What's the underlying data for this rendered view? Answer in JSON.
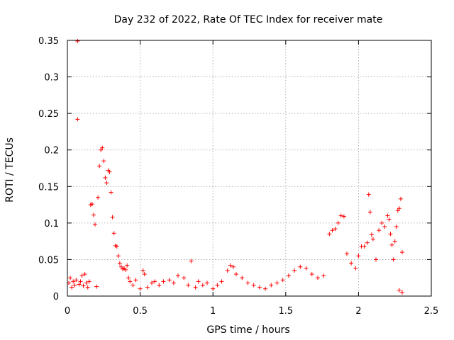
{
  "chart_data": {
    "type": "scatter",
    "title": "Day 232 of 2022, Rate Of TEC Index for receiver mate",
    "xlabel": "GPS time / hours",
    "ylabel": "ROTI / TECUs",
    "xlim": [
      0,
      2.5
    ],
    "ylim": [
      0,
      0.35
    ],
    "xticks": [
      0,
      0.5,
      1,
      1.5,
      2,
      2.5
    ],
    "xtick_labels": [
      "0",
      "0.5",
      "1",
      "1.5",
      "2",
      "2.5"
    ],
    "yticks": [
      0,
      0.05,
      0.1,
      0.15,
      0.2,
      0.25,
      0.3,
      0.35
    ],
    "ytick_labels": [
      "0",
      "0.05",
      "0.1",
      "0.15",
      "0.2",
      "0.25",
      "0.3",
      "0.35"
    ],
    "grid": true,
    "marker": "+",
    "color": "#ff0000",
    "series": [
      {
        "name": "ROTI",
        "points": [
          [
            0.01,
            0.018
          ],
          [
            0.02,
            0.025
          ],
          [
            0.03,
            0.012
          ],
          [
            0.04,
            0.02
          ],
          [
            0.05,
            0.015
          ],
          [
            0.06,
            0.022
          ],
          [
            0.07,
            0.349
          ],
          [
            0.07,
            0.242
          ],
          [
            0.08,
            0.016
          ],
          [
            0.09,
            0.02
          ],
          [
            0.1,
            0.028
          ],
          [
            0.11,
            0.014
          ],
          [
            0.12,
            0.03
          ],
          [
            0.13,
            0.018
          ],
          [
            0.14,
            0.012
          ],
          [
            0.15,
            0.02
          ],
          [
            0.16,
            0.125
          ],
          [
            0.17,
            0.126
          ],
          [
            0.18,
            0.111
          ],
          [
            0.19,
            0.098
          ],
          [
            0.2,
            0.013
          ],
          [
            0.21,
            0.135
          ],
          [
            0.22,
            0.178
          ],
          [
            0.23,
            0.2
          ],
          [
            0.24,
            0.203
          ],
          [
            0.25,
            0.185
          ],
          [
            0.26,
            0.162
          ],
          [
            0.27,
            0.155
          ],
          [
            0.28,
            0.172
          ],
          [
            0.29,
            0.17
          ],
          [
            0.3,
            0.142
          ],
          [
            0.31,
            0.108
          ],
          [
            0.32,
            0.086
          ],
          [
            0.33,
            0.069
          ],
          [
            0.34,
            0.068
          ],
          [
            0.35,
            0.055
          ],
          [
            0.36,
            0.045
          ],
          [
            0.37,
            0.04
          ],
          [
            0.38,
            0.037
          ],
          [
            0.39,
            0.038
          ],
          [
            0.4,
            0.036
          ],
          [
            0.41,
            0.042
          ],
          [
            0.42,
            0.025
          ],
          [
            0.43,
            0.02
          ],
          [
            0.45,
            0.015
          ],
          [
            0.47,
            0.022
          ],
          [
            0.5,
            0.01
          ],
          [
            0.52,
            0.035
          ],
          [
            0.53,
            0.03
          ],
          [
            0.55,
            0.012
          ],
          [
            0.58,
            0.018
          ],
          [
            0.6,
            0.02
          ],
          [
            0.63,
            0.015
          ],
          [
            0.66,
            0.02
          ],
          [
            0.7,
            0.022
          ],
          [
            0.73,
            0.018
          ],
          [
            0.76,
            0.028
          ],
          [
            0.8,
            0.025
          ],
          [
            0.83,
            0.015
          ],
          [
            0.85,
            0.048
          ],
          [
            0.88,
            0.012
          ],
          [
            0.9,
            0.02
          ],
          [
            0.93,
            0.015
          ],
          [
            0.96,
            0.018
          ],
          [
            1.0,
            0.01
          ],
          [
            1.03,
            0.015
          ],
          [
            1.06,
            0.02
          ],
          [
            1.1,
            0.035
          ],
          [
            1.12,
            0.042
          ],
          [
            1.14,
            0.04
          ],
          [
            1.16,
            0.03
          ],
          [
            1.2,
            0.025
          ],
          [
            1.24,
            0.018
          ],
          [
            1.28,
            0.015
          ],
          [
            1.32,
            0.012
          ],
          [
            1.36,
            0.01
          ],
          [
            1.4,
            0.015
          ],
          [
            1.44,
            0.018
          ],
          [
            1.48,
            0.022
          ],
          [
            1.52,
            0.028
          ],
          [
            1.56,
            0.035
          ],
          [
            1.6,
            0.04
          ],
          [
            1.64,
            0.038
          ],
          [
            1.68,
            0.03
          ],
          [
            1.72,
            0.025
          ],
          [
            1.76,
            0.028
          ],
          [
            1.8,
            0.085
          ],
          [
            1.82,
            0.09
          ],
          [
            1.84,
            0.092
          ],
          [
            1.86,
            0.1
          ],
          [
            1.88,
            0.11
          ],
          [
            1.9,
            0.109
          ],
          [
            1.92,
            0.058
          ],
          [
            1.95,
            0.045
          ],
          [
            1.98,
            0.038
          ],
          [
            2.0,
            0.055
          ],
          [
            2.02,
            0.068
          ],
          [
            2.04,
            0.068
          ],
          [
            2.06,
            0.073
          ],
          [
            2.07,
            0.139
          ],
          [
            2.08,
            0.115
          ],
          [
            2.09,
            0.084
          ],
          [
            2.1,
            0.078
          ],
          [
            2.12,
            0.05
          ],
          [
            2.14,
            0.09
          ],
          [
            2.16,
            0.1
          ],
          [
            2.18,
            0.095
          ],
          [
            2.2,
            0.11
          ],
          [
            2.21,
            0.105
          ],
          [
            2.22,
            0.085
          ],
          [
            2.23,
            0.07
          ],
          [
            2.24,
            0.05
          ],
          [
            2.25,
            0.075
          ],
          [
            2.26,
            0.095
          ],
          [
            2.27,
            0.117
          ],
          [
            2.28,
            0.12
          ],
          [
            2.29,
            0.133
          ],
          [
            2.3,
            0.06
          ],
          [
            2.3,
            0.005
          ],
          [
            2.28,
            0.008
          ]
        ]
      }
    ]
  }
}
